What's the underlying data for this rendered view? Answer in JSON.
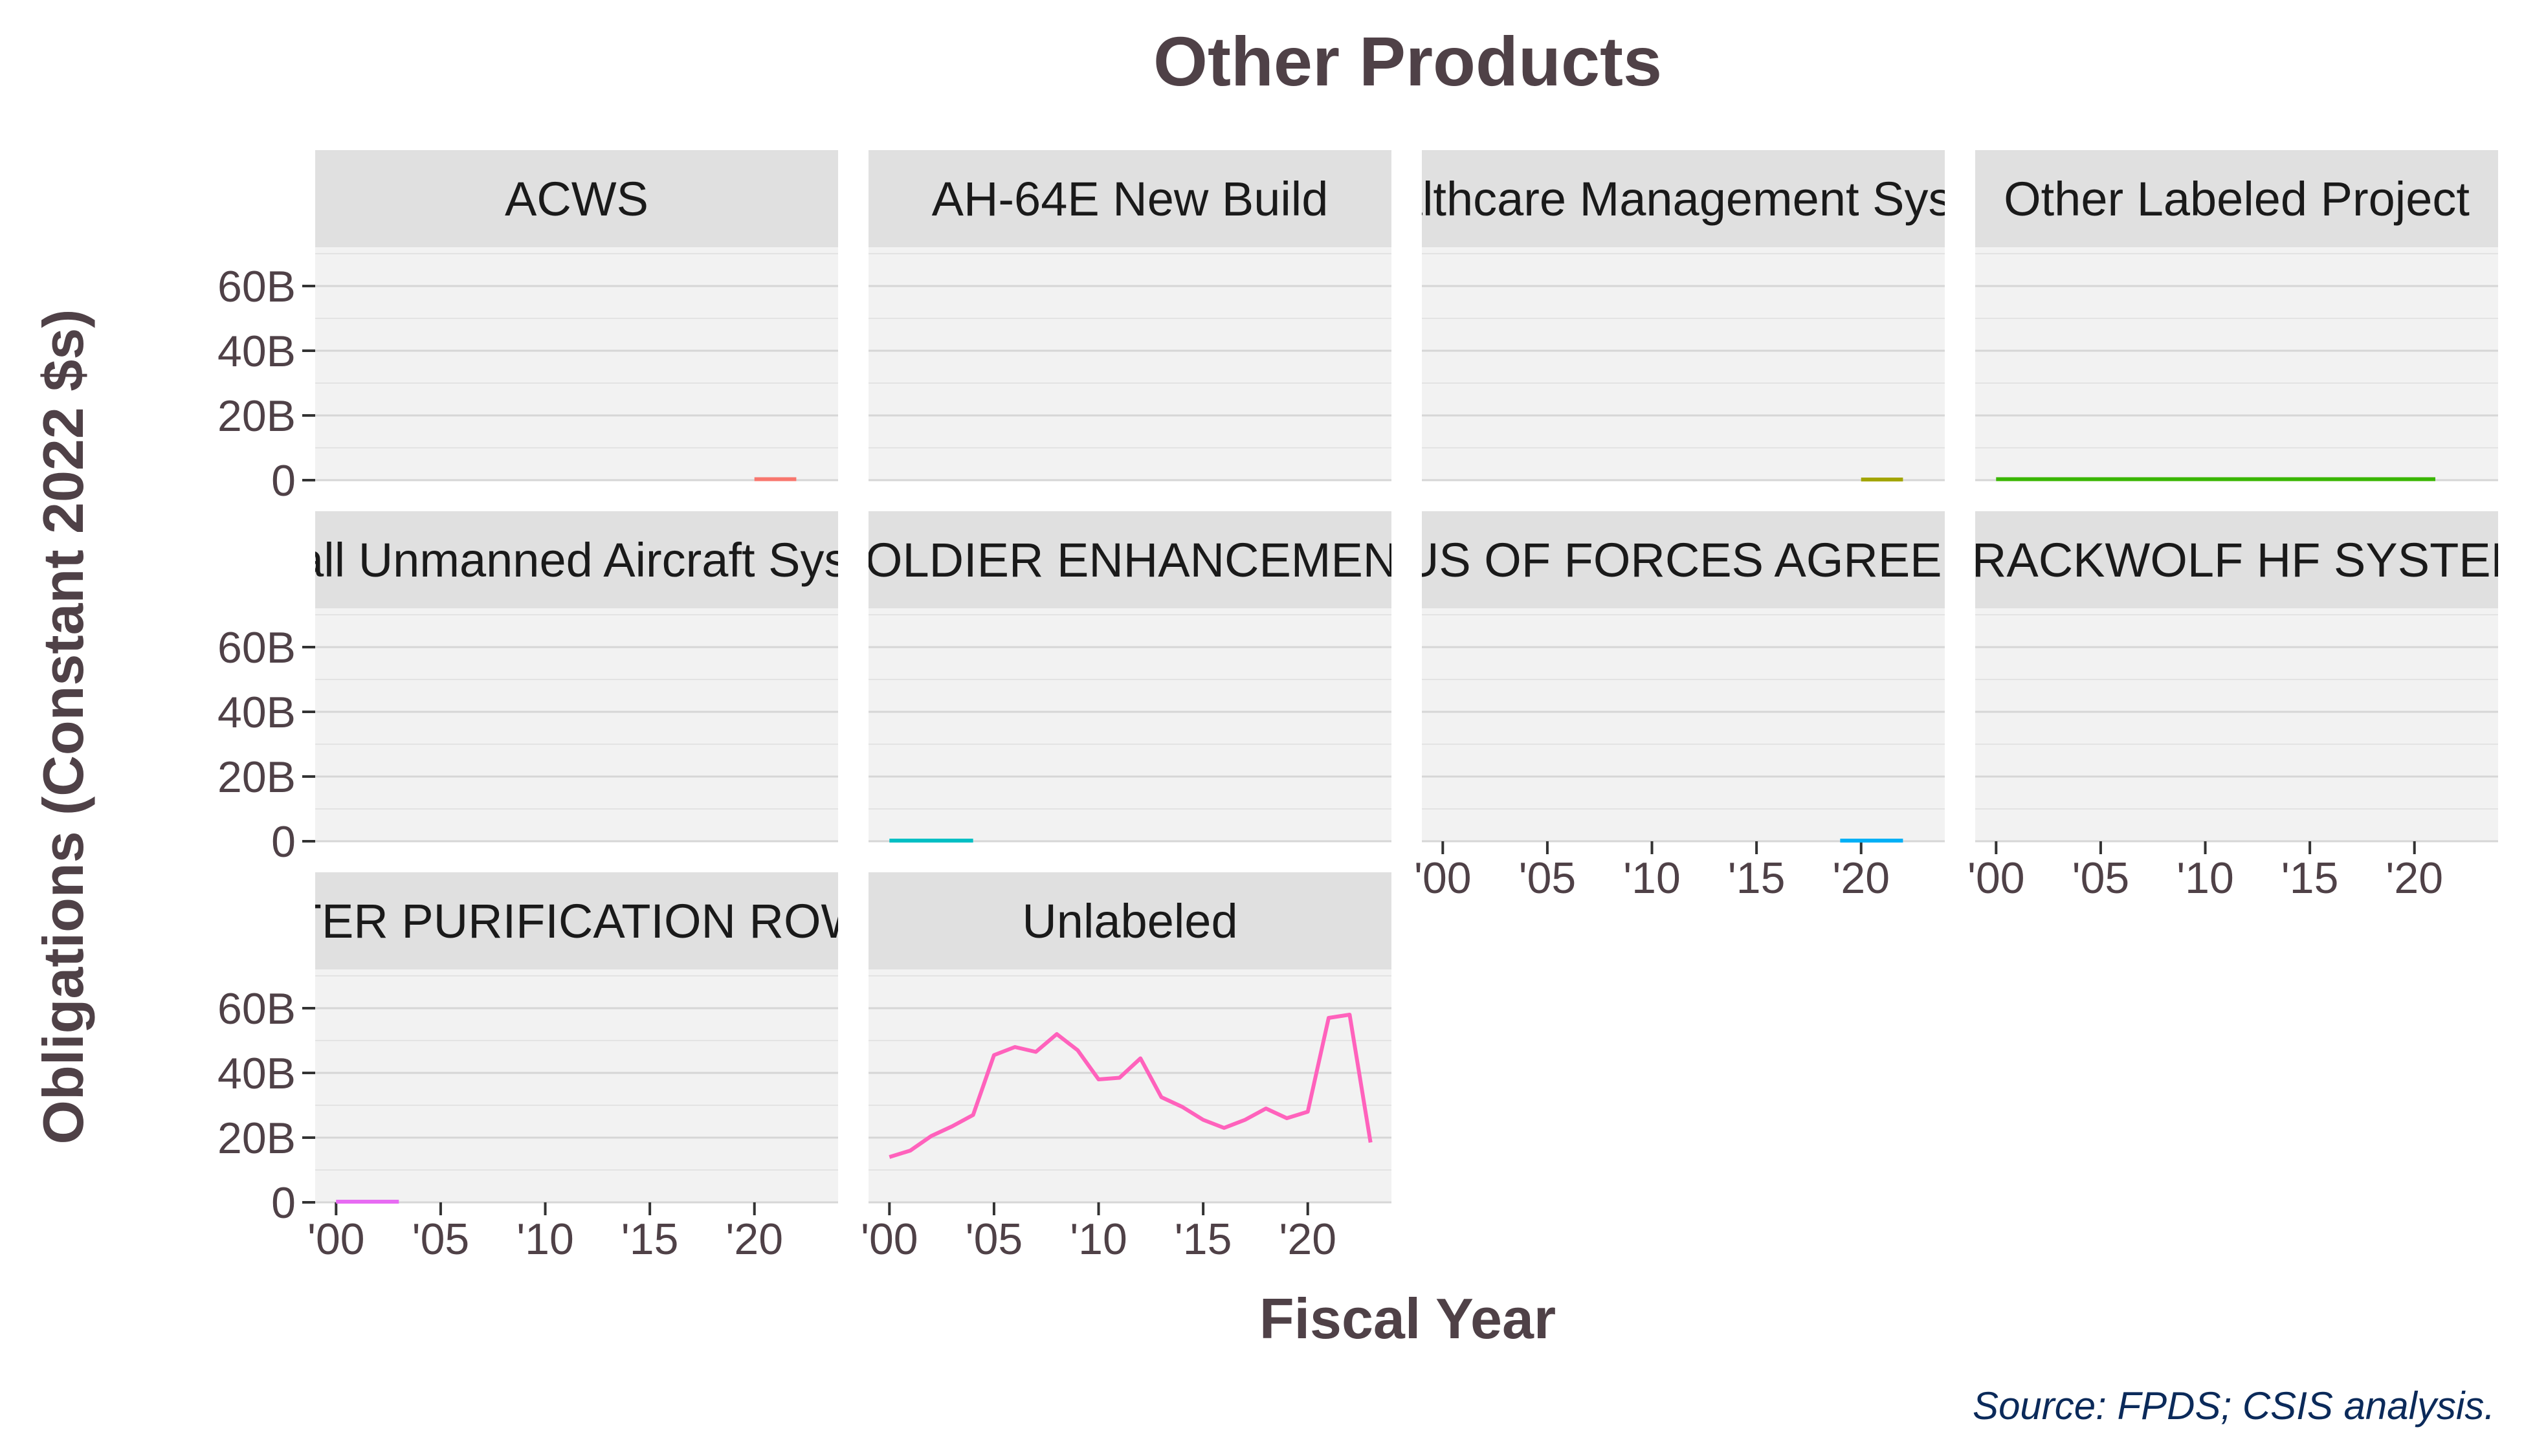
{
  "chart_data": {
    "type": "line",
    "title": "Other Products",
    "xlabel": "Fiscal Year",
    "ylabel": "Obligations (Constant 2022 $s)",
    "source": "Source: FPDS; CSIS analysis.",
    "xlim": [
      1999,
      2024
    ],
    "ylim": [
      0,
      72
    ],
    "x_ticks": [
      2000,
      2005,
      2010,
      2015,
      2020
    ],
    "x_tick_labels": [
      "'00",
      "'05",
      "'10",
      "'15",
      "'20"
    ],
    "y_ticks": [
      0,
      20,
      40,
      60
    ],
    "y_tick_labels": [
      "0",
      "20B",
      "40B",
      "60B"
    ],
    "grid": true,
    "panels": [
      {
        "label": "ACWS",
        "color": "#f8766d",
        "x": [
          2020,
          2021,
          2022
        ],
        "y": [
          0.3,
          0.3,
          0.3
        ]
      },
      {
        "label": "AH-64E New Build",
        "color": "#d89000",
        "x": [],
        "y": []
      },
      {
        "label": "Healthcare Management System",
        "color": "#a3a500",
        "x": [
          2020,
          2021,
          2022
        ],
        "y": [
          0.2,
          0.2,
          0.2
        ]
      },
      {
        "label": "Other Labeled Project",
        "color": "#39b600",
        "x": [
          2000,
          2001,
          2002,
          2003,
          2004,
          2005,
          2006,
          2007,
          2008,
          2009,
          2010,
          2011,
          2012,
          2013,
          2014,
          2015,
          2016,
          2017,
          2018,
          2019,
          2020,
          2021
        ],
        "y": [
          0.3,
          0.3,
          0.3,
          0.3,
          0.3,
          0.3,
          0.3,
          0.3,
          0.3,
          0.3,
          0.3,
          0.3,
          0.3,
          0.3,
          0.3,
          0.3,
          0.3,
          0.3,
          0.3,
          0.3,
          0.3,
          0.3
        ]
      },
      {
        "label": "Small Unmanned Aircraft System",
        "color": "#00bf7d",
        "x": [],
        "y": []
      },
      {
        "label": "SOLDIER ENHANCEMENT",
        "color": "#00bfc4",
        "x": [
          2000,
          2001,
          2002,
          2003,
          2004
        ],
        "y": [
          0.2,
          0.2,
          0.2,
          0.2,
          0.2
        ]
      },
      {
        "label": "STATUS OF FORCES AGREEMENT",
        "color": "#00b0f6",
        "x": [
          2019,
          2020,
          2021,
          2022
        ],
        "y": [
          0.2,
          0.2,
          0.2,
          0.2
        ]
      },
      {
        "label": "TRACKWOLF HF SYSTEM",
        "color": "#9590ff",
        "x": [],
        "y": []
      },
      {
        "label": "WATER PURIFICATION ROWPU",
        "color": "#e76bf3",
        "x": [
          2000,
          2001,
          2002,
          2003
        ],
        "y": [
          0.2,
          0.2,
          0.2,
          0.2
        ]
      },
      {
        "label": "Unlabeled",
        "color": "#ff62bc",
        "x": [
          2000,
          2001,
          2002,
          2003,
          2004,
          2005,
          2006,
          2007,
          2008,
          2009,
          2010,
          2011,
          2012,
          2013,
          2014,
          2015,
          2016,
          2017,
          2018,
          2019,
          2020,
          2021,
          2022,
          2023
        ],
        "y": [
          14,
          16,
          20.5,
          23.5,
          27,
          45.5,
          48,
          46.5,
          52,
          47,
          38,
          38.5,
          44.5,
          32.5,
          29.5,
          25.5,
          23,
          25.5,
          29,
          26,
          28,
          57,
          58,
          18.5
        ]
      }
    ]
  }
}
